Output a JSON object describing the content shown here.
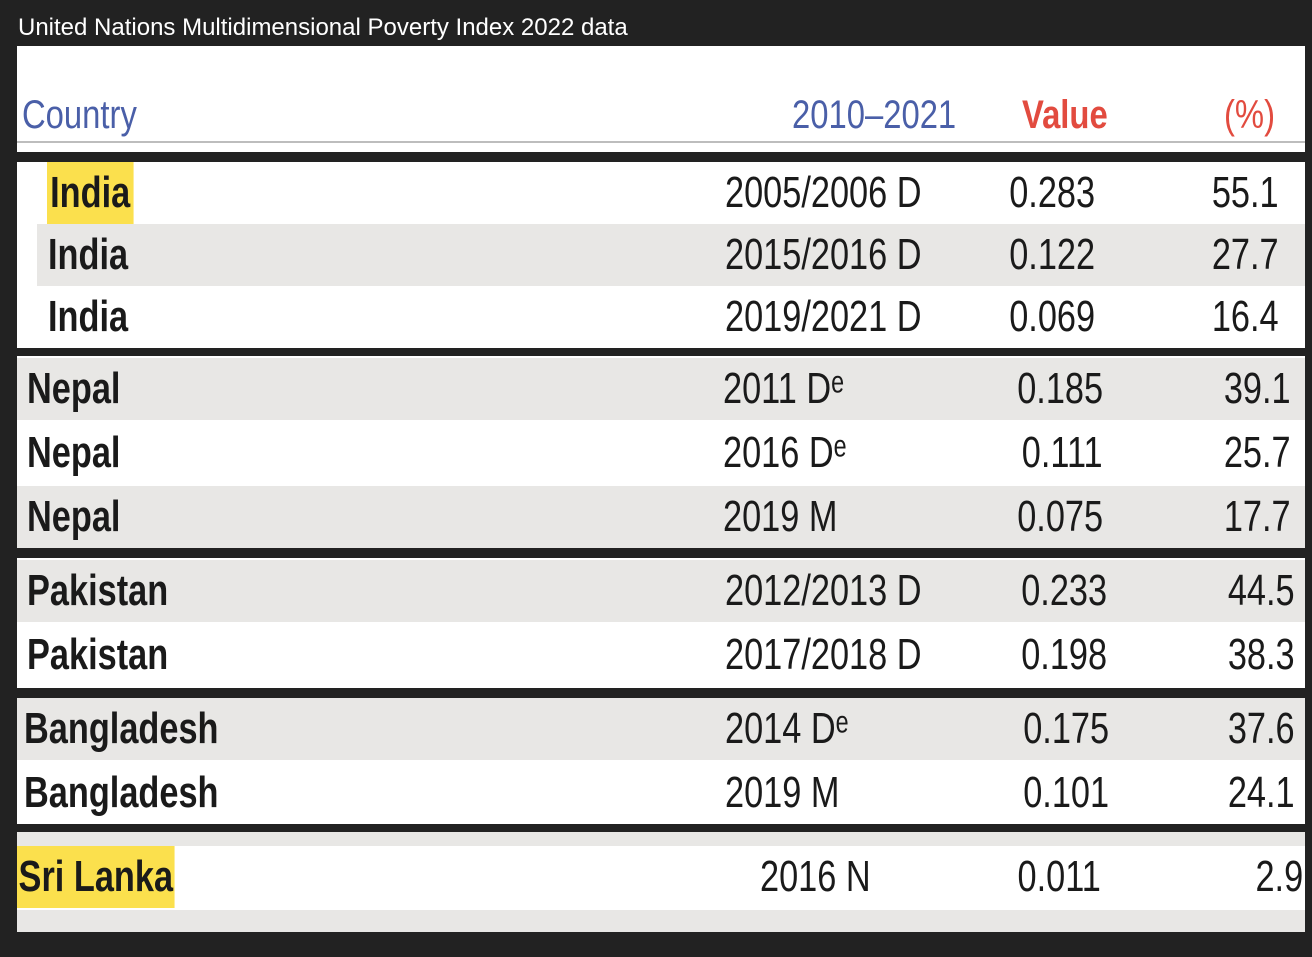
{
  "caption": "United Nations Multidimensional Poverty Index 2022 data",
  "table": {
    "headers": {
      "country": "Country",
      "period": "2010–2021",
      "value": "Value",
      "percent": "(%)"
    },
    "groups": [
      {
        "rows": [
          {
            "country": "India",
            "period": "2005/2006 D",
            "value": "0.283",
            "percent": "55.1",
            "highlight": true
          },
          {
            "country": "India",
            "period": "2015/2016 D",
            "value": "0.122",
            "percent": "27.7"
          },
          {
            "country": "India",
            "period": "2019/2021 D",
            "value": "0.069",
            "percent": "16.4"
          }
        ]
      },
      {
        "rows": [
          {
            "country": "Nepal",
            "period": "2011 Dᵉ",
            "value": "0.185",
            "percent": "39.1"
          },
          {
            "country": "Nepal",
            "period": "2016 Dᵉ",
            "value": "0.111",
            "percent": "25.7"
          },
          {
            "country": "Nepal",
            "period": "2019 M",
            "value": "0.075",
            "percent": "17.7"
          }
        ]
      },
      {
        "rows": [
          {
            "country": "Pakistan",
            "period": "2012/2013 D",
            "value": "0.233",
            "percent": "44.5"
          },
          {
            "country": "Pakistan",
            "period": "2017/2018 D",
            "value": "0.198",
            "percent": "38.3"
          }
        ]
      },
      {
        "rows": [
          {
            "country": "Bangladesh",
            "period": "2014 Dᵉ",
            "value": "0.175",
            "percent": "37.6"
          },
          {
            "country": "Bangladesh",
            "period": "2019 M",
            "value": "0.101",
            "percent": "24.1"
          }
        ]
      },
      {
        "rows": [
          {
            "country": "Sri Lanka",
            "period": "2016 N",
            "value": "0.011",
            "percent": "2.9",
            "highlight": true
          }
        ]
      }
    ]
  }
}
